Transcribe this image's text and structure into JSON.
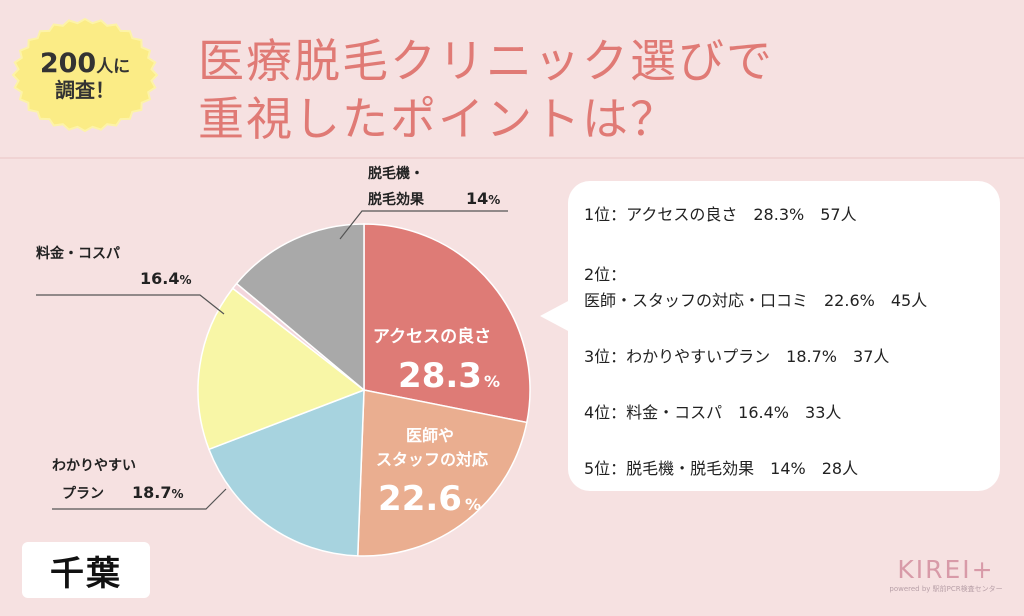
{
  "badge": {
    "count": "200",
    "unit": "人に",
    "line2": "調査！"
  },
  "title": {
    "line1": "医療脱毛クリニック選びで",
    "line2": "重視したポイントは？"
  },
  "colors": {
    "background": "#f6e1e1",
    "title": "#e07a75",
    "slices": [
      "#de7b76",
      "#eaae90",
      "#a7d3df",
      "#f8f6a6",
      "#f3d6dc",
      "#a9a9a9"
    ]
  },
  "chart_data": {
    "type": "pie",
    "categories": [
      "アクセスの良さ",
      "医師やスタッフの対応",
      "わかりやすいプラン",
      "料金・コスパ",
      "",
      "脱毛機・脱毛効果"
    ],
    "values": [
      28.3,
      22.6,
      18.7,
      16.4,
      0.6,
      14
    ],
    "slice_labels": [
      {
        "lines": [
          "アクセスの良さ"
        ],
        "value": "28.3",
        "unit": "%"
      },
      {
        "lines": [
          "医師や",
          "スタッフの対応"
        ],
        "value": "22.6",
        "unit": "%"
      }
    ],
    "external_labels": [
      {
        "lines": [
          "わかりやすい",
          "プラン"
        ],
        "value": "18.7",
        "unit": "%"
      },
      {
        "lines": [
          "料金・コスパ"
        ],
        "value": "16.4",
        "unit": "%"
      },
      {
        "lines": [
          "脱毛機・",
          "脱毛効果"
        ],
        "value": "14",
        "unit": "%"
      }
    ]
  },
  "ranking": [
    {
      "line1": "1位：アクセスの良さ　28.3%　57人"
    },
    {
      "line1": "2位：",
      "line2": "医師・スタッフの対応・口コミ　22.6%　45人"
    },
    {
      "line1": "3位：わかりやすいプラン　18.7%　37人"
    },
    {
      "line1": "4位：料金・コスパ　16.4%　33人"
    },
    {
      "line1": "5位：脱毛機・脱毛効果　14%　28人"
    }
  ],
  "place": "千葉",
  "logo": {
    "main": "KIREI+",
    "sub": "powered by 駅前PCR検査センター"
  }
}
